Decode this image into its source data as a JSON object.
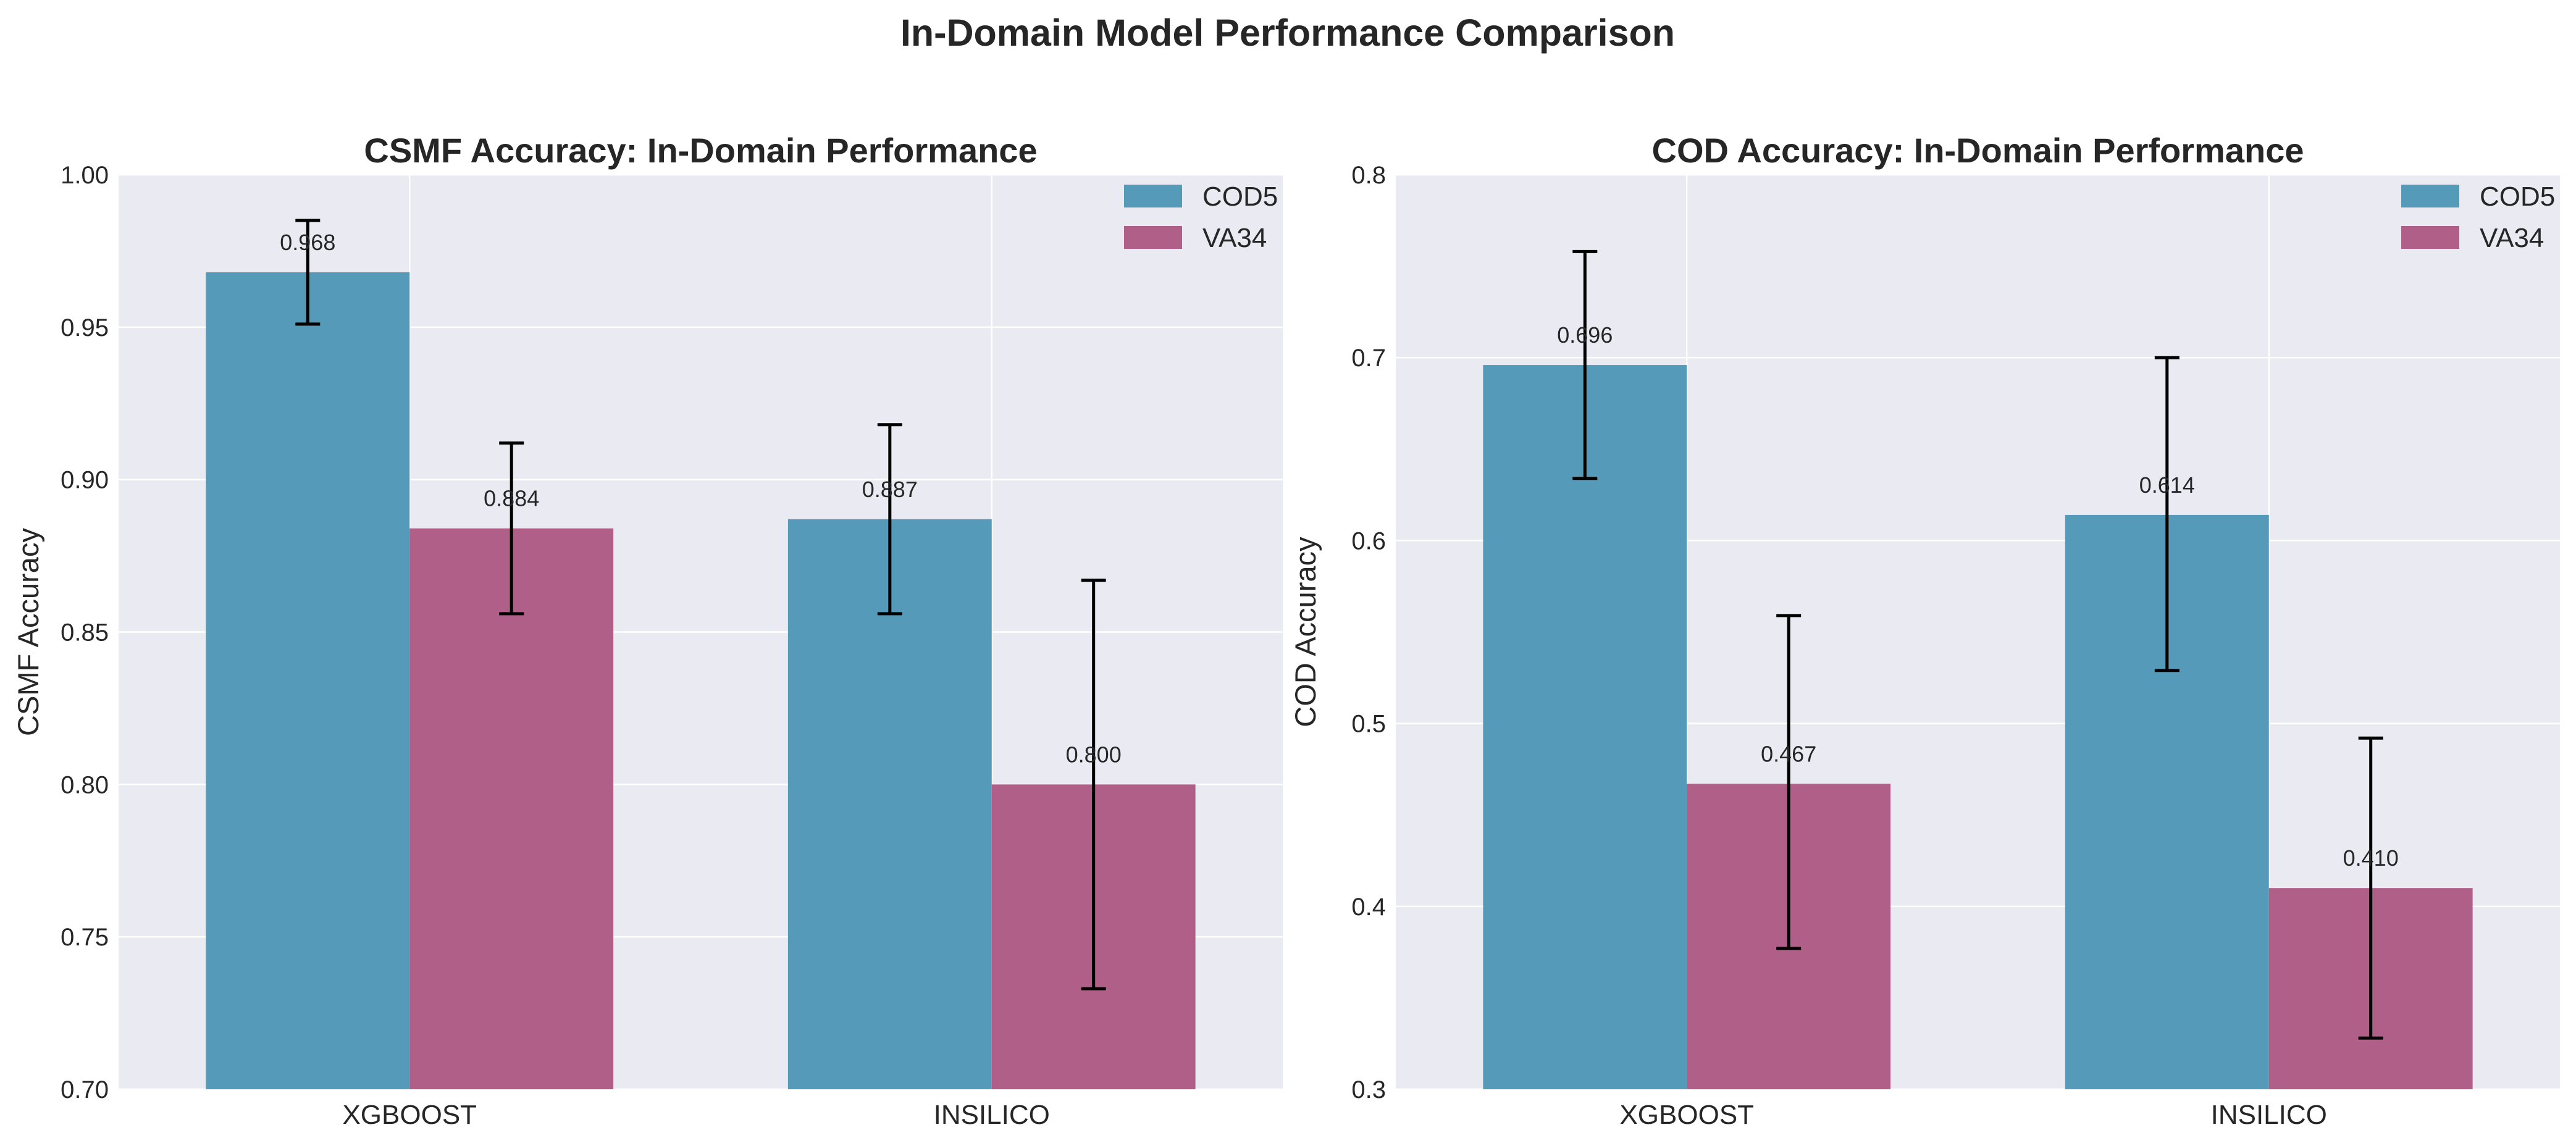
{
  "figure": {
    "suptitle": "In-Domain Model Performance Comparison"
  },
  "colors": {
    "COD5": "#559bb9",
    "VA34": "#b05f89",
    "plot_background": "#eaeaf2",
    "grid": "#ffffff",
    "error_bar": "#000000",
    "text": "#262626"
  },
  "chart_data": [
    {
      "type": "bar",
      "title": "CSMF Accuracy: In-Domain Performance",
      "xlabel": "",
      "ylabel": "CSMF Accuracy",
      "ylim": [
        0.7,
        1.0
      ],
      "yticks": [
        0.7,
        0.75,
        0.8,
        0.85,
        0.9,
        0.95,
        1.0
      ],
      "ytick_labels": [
        "0.70",
        "0.75",
        "0.80",
        "0.85",
        "0.90",
        "0.95",
        "1.00"
      ],
      "categories": [
        "XGBOOST",
        "INSILICO"
      ],
      "grid": true,
      "legend_position": "top-right",
      "series": [
        {
          "name": "COD5",
          "values": [
            0.968,
            0.887
          ],
          "error_low": [
            0.951,
            0.856
          ],
          "error_high": [
            0.985,
            0.918
          ],
          "labels": [
            "0.968",
            "0.887"
          ]
        },
        {
          "name": "VA34",
          "values": [
            0.884,
            0.8
          ],
          "error_low": [
            0.856,
            0.733
          ],
          "error_high": [
            0.912,
            0.867
          ],
          "labels": [
            "0.884",
            "0.800"
          ]
        }
      ]
    },
    {
      "type": "bar",
      "title": "COD Accuracy: In-Domain Performance",
      "xlabel": "",
      "ylabel": "COD Accuracy",
      "ylim": [
        0.3,
        0.8
      ],
      "yticks": [
        0.3,
        0.4,
        0.5,
        0.6,
        0.7,
        0.8
      ],
      "ytick_labels": [
        "0.3",
        "0.4",
        "0.5",
        "0.6",
        "0.7",
        "0.8"
      ],
      "categories": [
        "XGBOOST",
        "INSILICO"
      ],
      "grid": true,
      "legend_position": "top-right",
      "series": [
        {
          "name": "COD5",
          "values": [
            0.696,
            0.614
          ],
          "error_low": [
            0.634,
            0.529
          ],
          "error_high": [
            0.758,
            0.7
          ],
          "labels": [
            "0.696",
            "0.614"
          ]
        },
        {
          "name": "VA34",
          "values": [
            0.467,
            0.41
          ],
          "error_low": [
            0.377,
            0.328
          ],
          "error_high": [
            0.559,
            0.492
          ],
          "labels": [
            "0.467",
            "0.410"
          ]
        }
      ]
    }
  ]
}
